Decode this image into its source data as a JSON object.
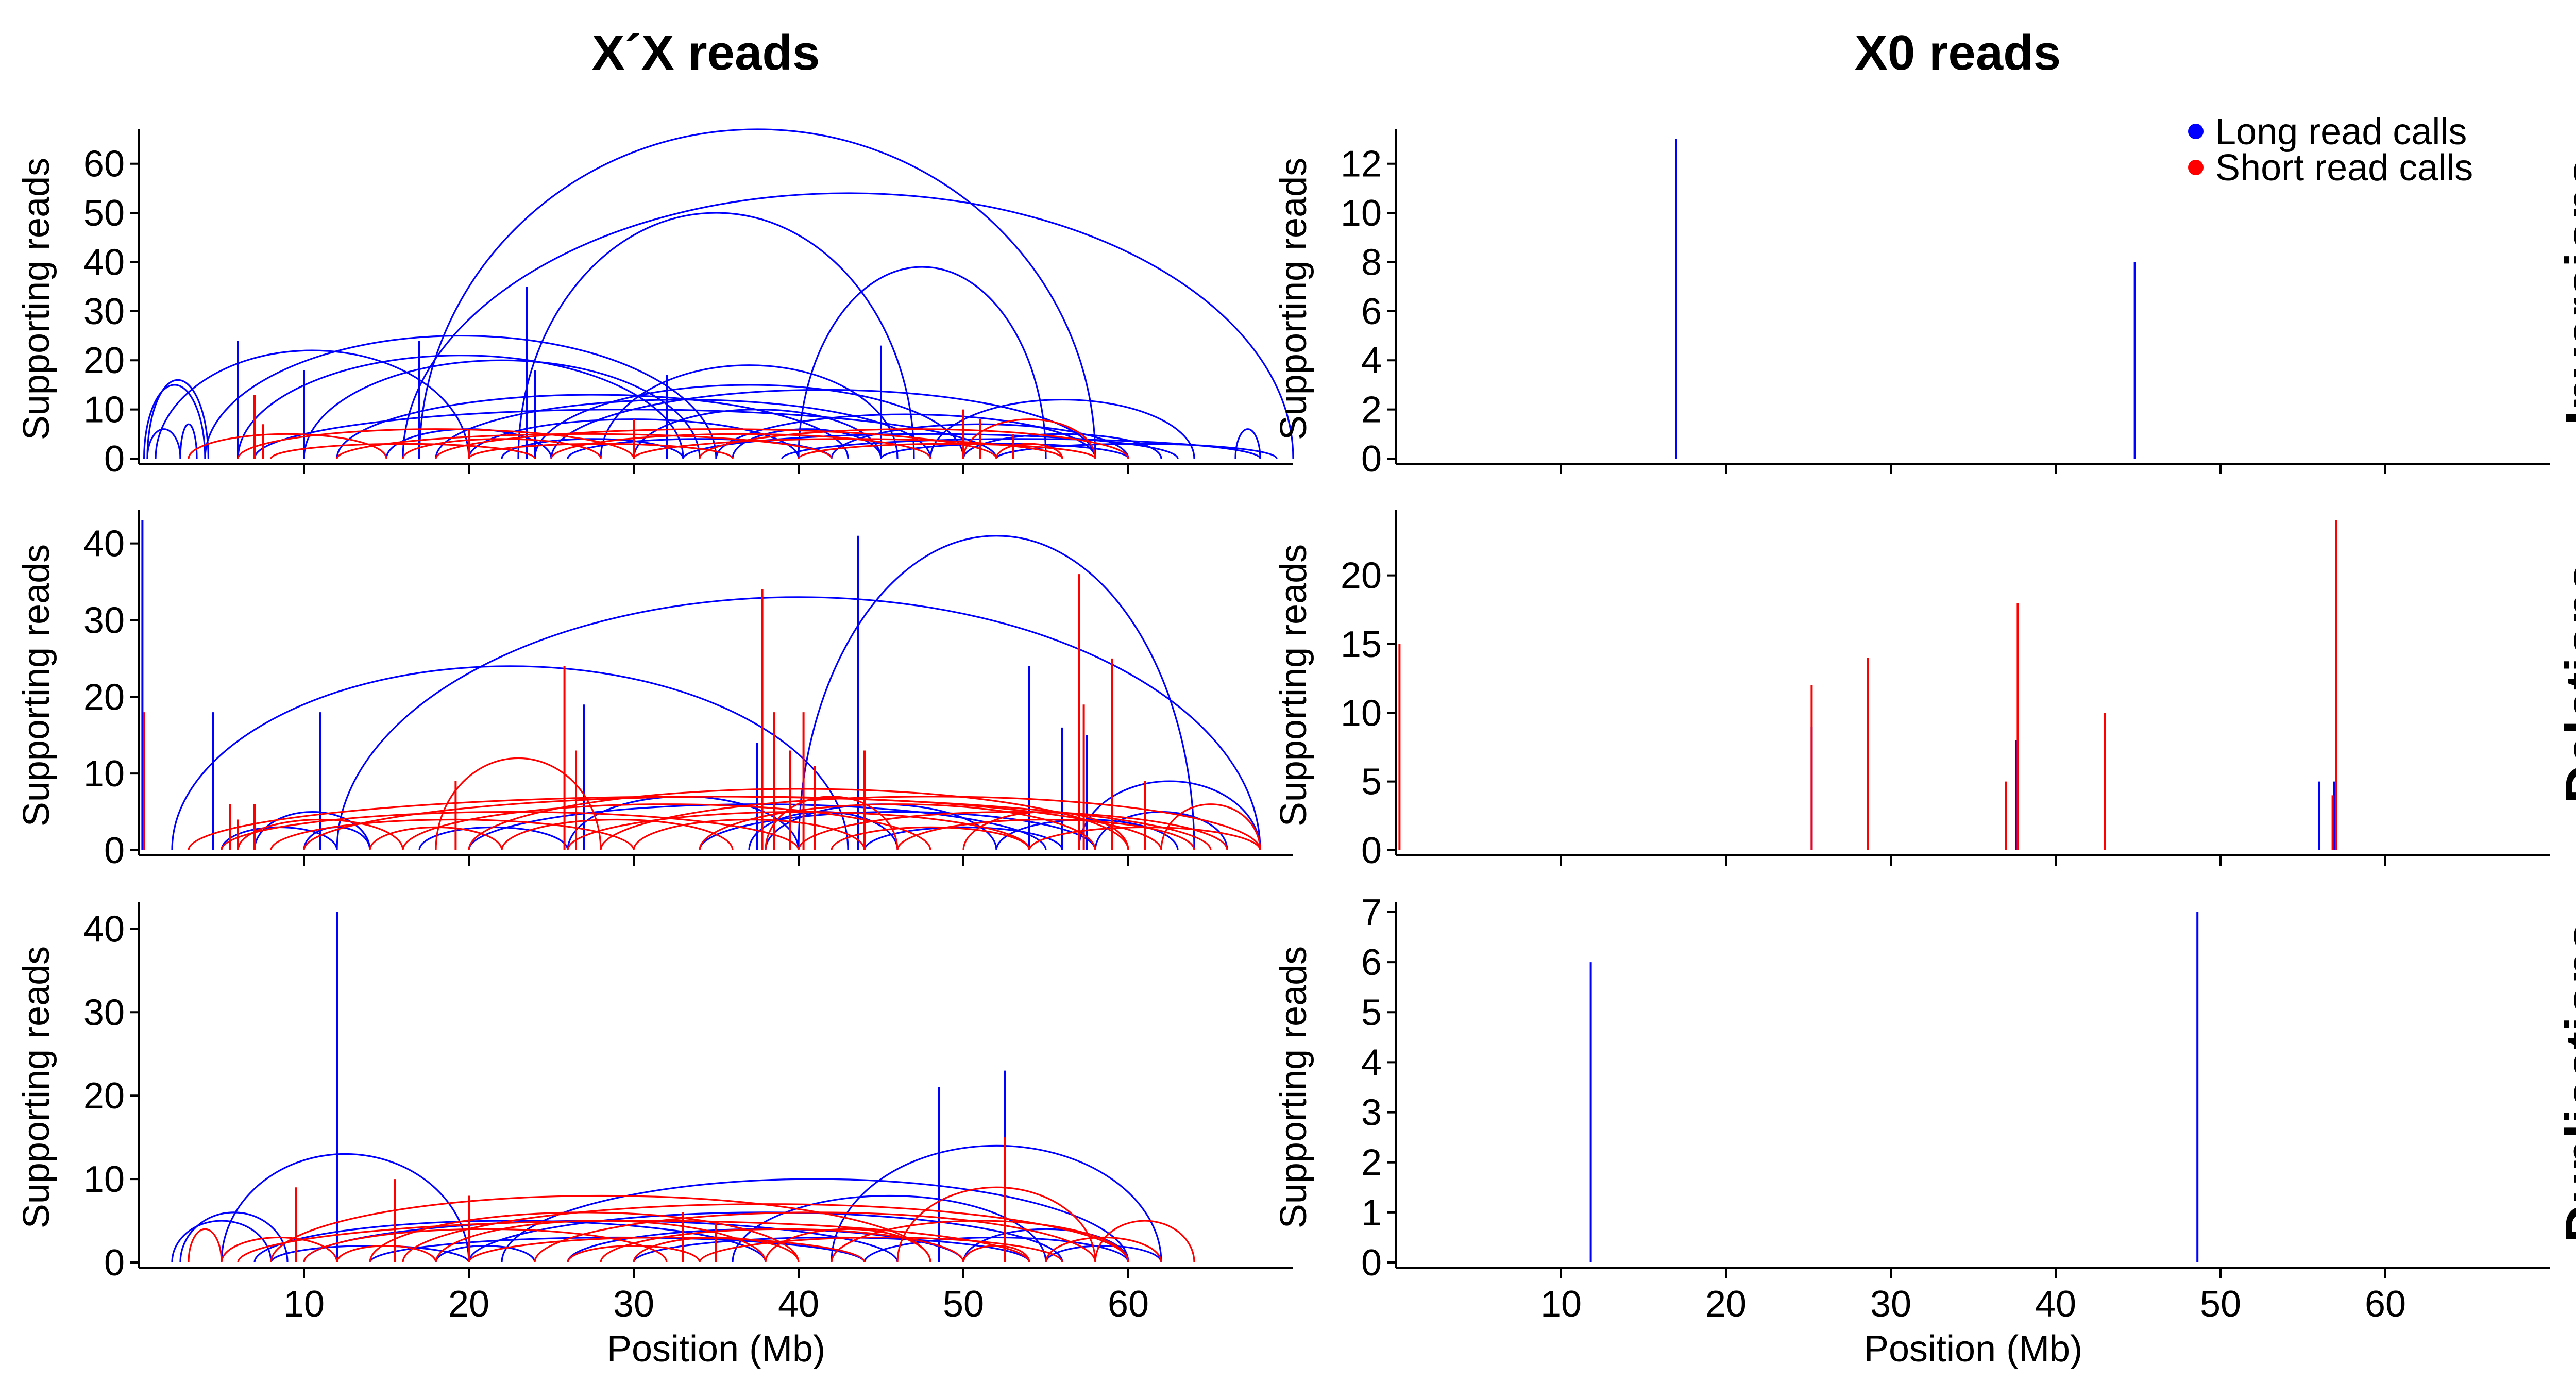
{
  "colors": {
    "long": "#0000ff",
    "short": "#ff0000",
    "axis": "#000000"
  },
  "columns": [
    "X´X reads",
    "X0 reads"
  ],
  "rows": [
    "Inversions",
    "Deletions",
    "Duplications"
  ],
  "legend": {
    "placement": "top-right",
    "long": "Long read calls",
    "short": "Short read calls"
  },
  "chart_data": [
    {
      "type": "arc",
      "panel": "xx-inversions",
      "title": "X´X reads",
      "row_label": "Inversions",
      "xlabel": "",
      "ylabel": "Supporting reads",
      "xlim": [
        0,
        70
      ],
      "ylim": [
        0,
        65
      ],
      "yticks": [
        0,
        10,
        20,
        30,
        40,
        50,
        60
      ],
      "xticks": [
        10,
        20,
        30,
        40,
        50,
        60
      ],
      "show_xticklabels": false,
      "series": [
        {
          "name": "Long read calls",
          "color": "long",
          "arcs": [
            [
              0.5,
              2.5,
              6
            ],
            [
              0.3,
              4.0,
              15
            ],
            [
              0.5,
              4.2,
              16
            ],
            [
              2.5,
              3.5,
              7
            ],
            [
              1.0,
              20,
              22
            ],
            [
              4,
              35,
              25
            ],
            [
              6,
              33,
              21
            ],
            [
              7,
              52,
              10
            ],
            [
              10,
              34,
              20
            ],
            [
              12,
              43,
              13
            ],
            [
              15,
              25,
              6
            ],
            [
              16,
              70,
              54
            ],
            [
              17,
              58,
              67
            ],
            [
              18,
              48,
              12
            ],
            [
              20,
              40,
              8
            ],
            [
              22,
              33,
              4
            ],
            [
              23,
              47,
              50
            ],
            [
              24,
              50,
              15
            ],
            [
              25,
              58,
              14
            ],
            [
              26,
              42,
              4
            ],
            [
              28,
              46,
              19
            ],
            [
              30,
              45,
              10
            ],
            [
              33,
              63,
              5
            ],
            [
              35,
              58,
              9
            ],
            [
              36,
              45,
              6
            ],
            [
              39,
              68,
              4
            ],
            [
              40,
              55,
              39
            ],
            [
              42,
              60,
              7
            ],
            [
              45,
              60,
              3
            ],
            [
              48,
              64,
              12
            ],
            [
              50,
              62,
              5
            ],
            [
              52,
              69,
              3
            ],
            [
              66.5,
              68,
              6
            ]
          ],
          "spikes": [
            [
              6,
              24
            ],
            [
              10,
              18
            ],
            [
              17,
              24
            ],
            [
              23.5,
              35
            ],
            [
              24,
              18
            ],
            [
              32,
              17
            ],
            [
              45,
              23
            ]
          ]
        },
        {
          "name": "Short read calls",
          "color": "short",
          "arcs": [
            [
              3,
              15,
              5
            ],
            [
              6,
              30,
              6
            ],
            [
              8,
              24,
              3
            ],
            [
              12,
              42,
              5
            ],
            [
              16,
              28,
              4
            ],
            [
              18,
              52,
              6
            ],
            [
              20,
              36,
              3
            ],
            [
              25,
              48,
              5
            ],
            [
              30,
              56,
              4
            ],
            [
              34,
              60,
              6
            ],
            [
              40,
              58,
              3
            ],
            [
              50,
              58,
              8
            ],
            [
              52,
              56,
              3
            ]
          ],
          "spikes": [
            [
              7,
              13
            ],
            [
              7.5,
              7
            ],
            [
              20,
              6
            ],
            [
              30,
              8
            ],
            [
              50,
              10
            ],
            [
              51,
              8
            ],
            [
              53,
              5
            ]
          ]
        }
      ]
    },
    {
      "type": "arc",
      "panel": "x0-inversions",
      "title": "X0 reads",
      "row_label": "Inversions",
      "xlabel": "",
      "ylabel": "Supporting reads",
      "xlim": [
        0,
        70
      ],
      "ylim": [
        0,
        13
      ],
      "yticks": [
        0,
        2,
        4,
        6,
        8,
        10,
        12
      ],
      "xticks": [
        10,
        20,
        30,
        40,
        50,
        60
      ],
      "show_xticklabels": false,
      "series": [
        {
          "name": "Long read calls",
          "color": "long",
          "arcs": [],
          "spikes": [
            [
              17,
              13
            ],
            [
              44.8,
              8
            ]
          ]
        },
        {
          "name": "Short read calls",
          "color": "short",
          "arcs": [],
          "spikes": []
        }
      ]
    },
    {
      "type": "arc",
      "panel": "xx-deletions",
      "title": "",
      "row_label": "Deletions",
      "xlabel": "",
      "ylabel": "Supporting reads",
      "xlim": [
        0,
        70
      ],
      "ylim": [
        0,
        43
      ],
      "yticks": [
        0,
        10,
        20,
        30,
        40
      ],
      "xticks": [
        10,
        20,
        30,
        40,
        50,
        60
      ],
      "show_xticklabels": false,
      "series": [
        {
          "name": "Long read calls",
          "color": "long",
          "arcs": [
            [
              2,
              43,
              24
            ],
            [
              5,
              12,
              3
            ],
            [
              7,
              14,
              5
            ],
            [
              10,
              14,
              3
            ],
            [
              12,
              68,
              33
            ],
            [
              17,
              26,
              3
            ],
            [
              20,
              55,
              6
            ],
            [
              26,
              40,
              7
            ],
            [
              34,
              58,
              5
            ],
            [
              37,
              46,
              5
            ],
            [
              38,
              52,
              6
            ],
            [
              40,
              64,
              41
            ],
            [
              44,
              56,
              3
            ],
            [
              52,
              63,
              4
            ],
            [
              57,
              68,
              9
            ],
            [
              58,
              66,
              5
            ]
          ],
          "spikes": [
            [
              0.2,
              43
            ],
            [
              4.5,
              18
            ],
            [
              11,
              18
            ],
            [
              27,
              19
            ],
            [
              37.5,
              14
            ],
            [
              43.6,
              41
            ],
            [
              54,
              24
            ],
            [
              56,
              16
            ],
            [
              57.5,
              15
            ]
          ]
        },
        {
          "name": "Short read calls",
          "color": "short",
          "arcs": [
            [
              3,
              65,
              7
            ],
            [
              5,
              40,
              5
            ],
            [
              6,
              16,
              4
            ],
            [
              8,
              30,
              4
            ],
            [
              10,
              62,
              7
            ],
            [
              14,
              22,
              3
            ],
            [
              16,
              48,
              6
            ],
            [
              18,
              28,
              12
            ],
            [
              20,
              60,
              8
            ],
            [
              22,
              36,
              4
            ],
            [
              26,
              54,
              5
            ],
            [
              28,
              68,
              7
            ],
            [
              30,
              44,
              4
            ],
            [
              34,
              58,
              6
            ],
            [
              38,
              46,
              7
            ],
            [
              40,
              66,
              5
            ],
            [
              42,
              54,
              3
            ],
            [
              46,
              64,
              4
            ],
            [
              50,
              60,
              5
            ],
            [
              54,
              68,
              3
            ],
            [
              62,
              68,
              6
            ]
          ],
          "spikes": [
            [
              0.3,
              18
            ],
            [
              5.5,
              6
            ],
            [
              6,
              4
            ],
            [
              7,
              6
            ],
            [
              19.2,
              9
            ],
            [
              25.8,
              24
            ],
            [
              26.5,
              13
            ],
            [
              37.8,
              34
            ],
            [
              38.5,
              18
            ],
            [
              39.5,
              13
            ],
            [
              40.3,
              18
            ],
            [
              41,
              11
            ],
            [
              44,
              13
            ],
            [
              57,
              36
            ],
            [
              57.3,
              19
            ],
            [
              59,
              25
            ],
            [
              61,
              9
            ]
          ]
        }
      ]
    },
    {
      "type": "arc",
      "panel": "x0-deletions",
      "title": "",
      "row_label": "Deletions",
      "xlabel": "",
      "ylabel": "Supporting reads",
      "xlim": [
        0,
        70
      ],
      "ylim": [
        0,
        24
      ],
      "yticks": [
        0,
        5,
        10,
        15,
        20
      ],
      "xticks": [
        10,
        20,
        30,
        40,
        50,
        60
      ],
      "show_xticklabels": false,
      "series": [
        {
          "name": "Long read calls",
          "color": "long",
          "arcs": [],
          "spikes": [
            [
              25.2,
              9
            ],
            [
              37.6,
              8
            ],
            [
              56,
              5
            ],
            [
              56.9,
              5
            ]
          ]
        },
        {
          "name": "Short read calls",
          "color": "short",
          "arcs": [],
          "spikes": [
            [
              0.2,
              15
            ],
            [
              25.2,
              12
            ],
            [
              28.6,
              14
            ],
            [
              37,
              5
            ],
            [
              37.7,
              18
            ],
            [
              43,
              10
            ],
            [
              56.8,
              4
            ],
            [
              57,
              24
            ]
          ]
        }
      ]
    },
    {
      "type": "arc",
      "panel": "xx-duplications",
      "title": "",
      "row_label": "Duplications",
      "xlabel": "Position (Mb)",
      "ylabel": "Supporting reads",
      "xlim": [
        0,
        70
      ],
      "ylim": [
        0,
        42
      ],
      "yticks": [
        0,
        10,
        20,
        30,
        40
      ],
      "xticks": [
        10,
        20,
        30,
        40,
        50,
        60
      ],
      "show_xticklabels": true,
      "series": [
        {
          "name": "Long read calls",
          "color": "long",
          "arcs": [
            [
              2,
              8,
              5
            ],
            [
              2.5,
              9,
              6
            ],
            [
              5,
              20,
              13
            ],
            [
              7,
              38,
              5
            ],
            [
              8,
              20,
              2
            ],
            [
              10,
              46,
              5
            ],
            [
              14,
              44,
              3
            ],
            [
              18,
              24,
              2
            ],
            [
              20,
              56,
              6
            ],
            [
              22,
              60,
              10
            ],
            [
              26,
              50,
              4
            ],
            [
              30,
              54,
              3
            ],
            [
              36,
              55,
              8
            ],
            [
              42,
              62,
              14
            ],
            [
              44,
              60,
              3
            ],
            [
              50,
              60,
              4
            ],
            [
              55,
              62,
              2
            ]
          ],
          "spikes": [
            [
              12,
              42
            ],
            [
              48.5,
              21
            ],
            [
              52.5,
              23
            ]
          ]
        },
        {
          "name": "Short read calls",
          "color": "short",
          "arcs": [
            [
              3,
              5,
              4
            ],
            [
              5,
              12,
              3
            ],
            [
              6,
              54,
              5
            ],
            [
              8,
              48,
              8
            ],
            [
              10,
              32,
              4
            ],
            [
              12,
              18,
              2
            ],
            [
              14,
              40,
              6
            ],
            [
              16,
              60,
              7
            ],
            [
              18,
              38,
              5
            ],
            [
              20,
              44,
              3
            ],
            [
              24,
              58,
              6
            ],
            [
              26,
              34,
              2
            ],
            [
              28,
              50,
              4
            ],
            [
              30,
              40,
              3
            ],
            [
              34,
              56,
              3
            ],
            [
              38,
              48,
              4
            ],
            [
              42,
              60,
              5
            ],
            [
              46,
              58,
              9
            ],
            [
              50,
              54,
              2
            ],
            [
              55,
              62,
              3
            ],
            [
              58,
              64,
              5
            ]
          ],
          "spikes": [
            [
              9.5,
              9
            ],
            [
              15.5,
              10
            ],
            [
              20,
              8
            ],
            [
              33,
              6
            ],
            [
              35,
              5
            ],
            [
              52.5,
              15
            ]
          ]
        }
      ]
    },
    {
      "type": "arc",
      "panel": "x0-duplications",
      "title": "",
      "row_label": "Duplications",
      "xlabel": "Position (Mb)",
      "ylabel": "Supporting reads",
      "xlim": [
        0,
        70
      ],
      "ylim": [
        0,
        7
      ],
      "yticks": [
        0,
        1,
        2,
        3,
        4,
        5,
        6,
        7
      ],
      "xticks": [
        10,
        20,
        30,
        40,
        50,
        60
      ],
      "show_xticklabels": true,
      "series": [
        {
          "name": "Long read calls",
          "color": "long",
          "arcs": [],
          "spikes": [
            [
              11.8,
              6
            ],
            [
              48.6,
              7
            ]
          ]
        },
        {
          "name": "Short read calls",
          "color": "short",
          "arcs": [],
          "spikes": []
        }
      ]
    }
  ]
}
